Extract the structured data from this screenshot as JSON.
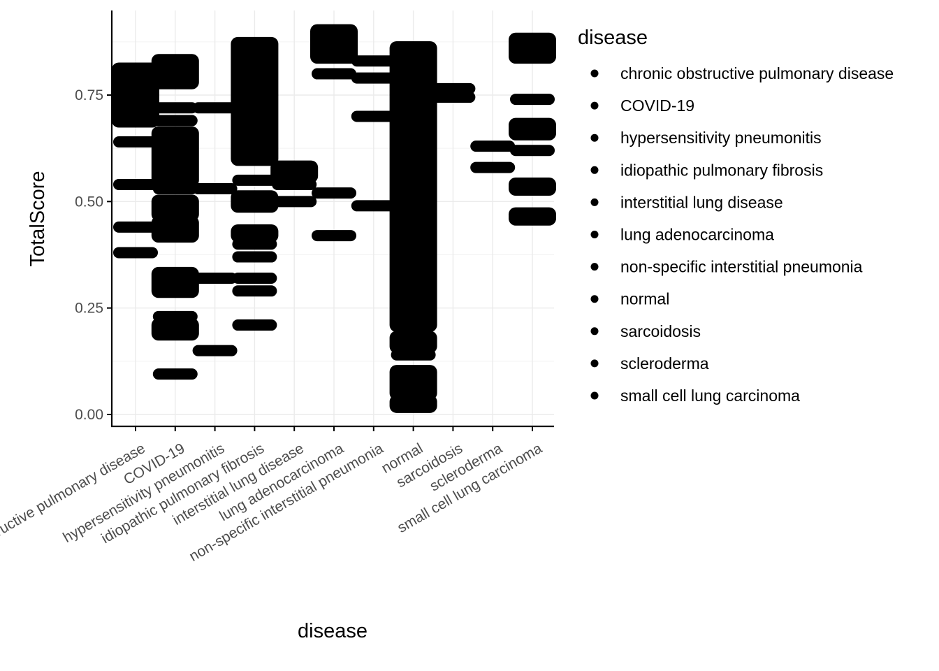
{
  "chart_data": {
    "type": "scatter",
    "xlabel": "disease",
    "ylabel": "TotalScore",
    "ylim": [
      -0.03,
      0.95
    ],
    "yticks": [
      0.0,
      0.25,
      0.5,
      0.75
    ],
    "ytick_labels": [
      "0.00",
      "0.25",
      "0.50",
      "0.75"
    ],
    "grid": true,
    "legend": {
      "title": "disease",
      "position": "right",
      "marker_color": "#000000"
    },
    "point_color": "#000000",
    "categories": [
      "chronic obstructive pulmonary disease",
      "COVID-19",
      "hypersensitivity pneumonitis",
      "idiopathic pulmonary fibrosis",
      "interstitial lung disease",
      "lung adenocarcinoma",
      "non-specific interstitial pneumonia",
      "normal",
      "sarcoidosis",
      "scleroderma",
      "small cell lung carcinoma"
    ],
    "series": [
      {
        "category": "chronic obstructive pulmonary disease",
        "values": [
          0.38,
          0.44,
          0.54,
          0.64
        ],
        "ranges": [
          [
            0.69,
            0.81
          ]
        ]
      },
      {
        "category": "COVID-19",
        "values": [
          0.095,
          0.23,
          0.53,
          0.69,
          0.72
        ],
        "ranges": [
          [
            0.19,
            0.21
          ],
          [
            0.29,
            0.33
          ],
          [
            0.42,
            0.45
          ],
          [
            0.47,
            0.5
          ],
          [
            0.55,
            0.66
          ],
          [
            0.78,
            0.83
          ]
        ]
      },
      {
        "category": "hypersensitivity pneumonitis",
        "values": [
          0.15,
          0.32,
          0.53,
          0.72
        ],
        "ranges": []
      },
      {
        "category": "idiopathic pulmonary fibrosis",
        "values": [
          0.21,
          0.29,
          0.32,
          0.37,
          0.4,
          0.55
        ],
        "ranges": [
          [
            0.42,
            0.43
          ],
          [
            0.49,
            0.51
          ],
          [
            0.6,
            0.87
          ]
        ]
      },
      {
        "category": "interstitial lung disease",
        "values": [
          0.5,
          0.54
        ],
        "ranges": [
          [
            0.56,
            0.58
          ]
        ]
      },
      {
        "category": "lung adenocarcinoma",
        "values": [
          0.42,
          0.52,
          0.8
        ],
        "ranges": [
          [
            0.84,
            0.9
          ]
        ]
      },
      {
        "category": "non-specific interstitial pneumonia",
        "values": [
          0.49,
          0.7,
          0.79,
          0.83
        ],
        "ranges": []
      },
      {
        "category": "normal",
        "values": [
          0.14
        ],
        "ranges": [
          [
            0.02,
            0.03
          ],
          [
            0.05,
            0.1
          ],
          [
            0.16,
            0.18
          ],
          [
            0.21,
            0.86
          ]
        ]
      },
      {
        "category": "sarcoidosis",
        "values": [
          0.745,
          0.765
        ],
        "ranges": []
      },
      {
        "category": "scleroderma",
        "values": [
          0.58,
          0.63
        ],
        "ranges": []
      },
      {
        "category": "small cell lung carcinoma",
        "values": [
          0.62,
          0.74
        ],
        "ranges": [
          [
            0.46,
            0.47
          ],
          [
            0.53,
            0.54
          ],
          [
            0.66,
            0.68
          ],
          [
            0.84,
            0.88
          ]
        ]
      }
    ]
  }
}
